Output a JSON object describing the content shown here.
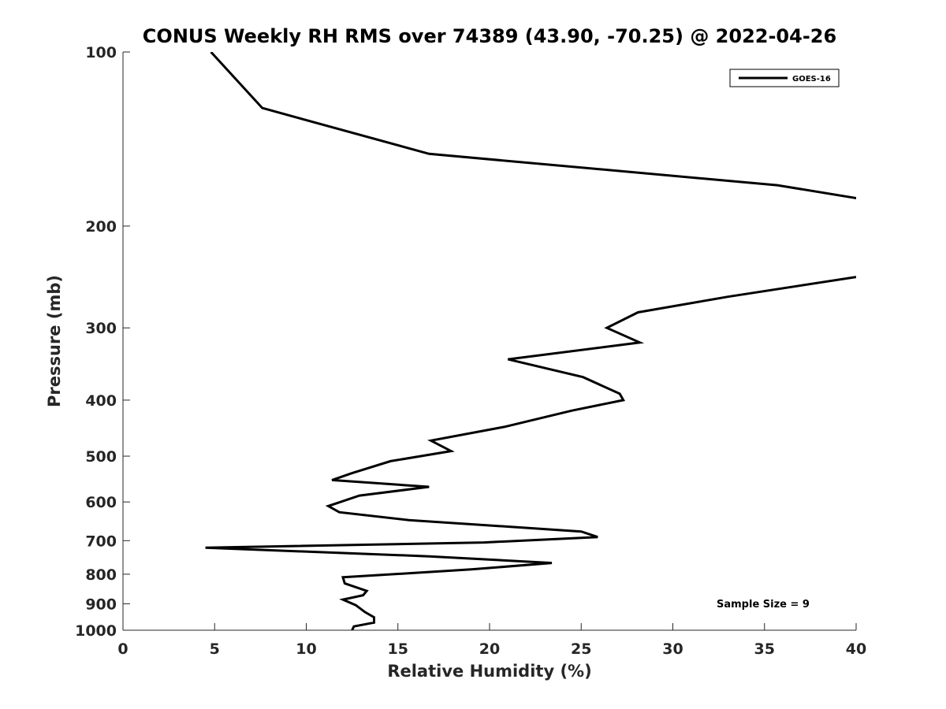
{
  "chart_data": {
    "type": "line",
    "title": "CONUS Weekly RH RMS over 74389 (43.90, -70.25) @ 2022-04-26",
    "xlabel": "Relative Humidity (%)",
    "ylabel": "Pressure (mb)",
    "xlim": [
      0,
      40
    ],
    "ylim": [
      100,
      1000
    ],
    "y_scale": "log",
    "y_direction": "reversed",
    "grid": false,
    "legend_position": "top-right",
    "x_ticks": [
      "0",
      "5",
      "10",
      "15",
      "20",
      "25",
      "30",
      "35",
      "40"
    ],
    "y_ticks": [
      "100",
      "200",
      "300",
      "400",
      "500",
      "600",
      "700",
      "800",
      "900",
      "1000"
    ],
    "series": [
      {
        "name": "GOES-16",
        "color": "#000000",
        "x": [
          4.8,
          7.6,
          16.7,
          35.7,
          40.5,
          null,
          40.0,
          33.0,
          28.1,
          26.4,
          28.2,
          21.0,
          25.1,
          27.1,
          27.3,
          24.5,
          20.8,
          16.8,
          17.9,
          14.6,
          12.5,
          11.4,
          16.7,
          12.9,
          11.2,
          11.8,
          15.6,
          25.0,
          25.9,
          19.7,
          4.5,
          16.7,
          23.4,
          19.0,
          12.0,
          12.1,
          13.3,
          13.1,
          12.0,
          12.7,
          13.2,
          13.7,
          13.7,
          12.6,
          12.5
        ],
        "y": [
          100,
          125,
          150,
          170,
          180,
          null,
          245,
          265,
          282,
          300,
          318,
          340,
          365,
          390,
          400,
          417,
          445,
          470,
          490,
          510,
          535,
          550,
          565,
          585,
          610,
          625,
          645,
          675,
          690,
          705,
          720,
          745,
          765,
          785,
          810,
          830,
          855,
          870,
          885,
          905,
          930,
          950,
          970,
          985,
          1000
        ]
      }
    ],
    "annotations": [
      "Sample Size = 9"
    ]
  }
}
